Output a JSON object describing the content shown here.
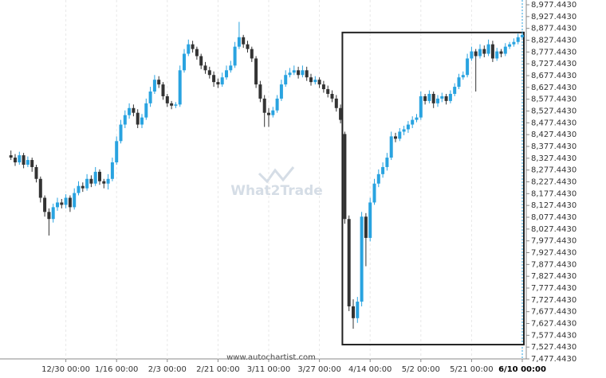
{
  "chart_data": {
    "type": "candlestick",
    "watermark": "What2Trade",
    "source": "www.autochartist.com",
    "up_color": "#29a3e0",
    "down_color": "#333333",
    "ylim": [
      7477.443,
      8977.443
    ],
    "yticks": [
      {
        "value": 7477.443,
        "label": "7,477.4430"
      },
      {
        "value": 7527.443,
        "label": "7,527.4430"
      },
      {
        "value": 7577.443,
        "label": "7,577.4430"
      },
      {
        "value": 7627.443,
        "label": "7,627.4430"
      },
      {
        "value": 7677.443,
        "label": "7,677.4430"
      },
      {
        "value": 7727.443,
        "label": "7,727.4430"
      },
      {
        "value": 7777.443,
        "label": "7,777.4430"
      },
      {
        "value": 7827.443,
        "label": "7,827.4430"
      },
      {
        "value": 7877.443,
        "label": "7,877.4430"
      },
      {
        "value": 7927.443,
        "label": "7,927.4430"
      },
      {
        "value": 7977.443,
        "label": "7,977.4430"
      },
      {
        "value": 8027.443,
        "label": "8,027.4430"
      },
      {
        "value": 8077.443,
        "label": "8,077.4430"
      },
      {
        "value": 8127.443,
        "label": "8,127.4430"
      },
      {
        "value": 8177.443,
        "label": "8,177.4430"
      },
      {
        "value": 8227.443,
        "label": "8,227.4430"
      },
      {
        "value": 8277.443,
        "label": "8,277.4430"
      },
      {
        "value": 8327.443,
        "label": "8,327.4430"
      },
      {
        "value": 8377.443,
        "label": "8,377.4430"
      },
      {
        "value": 8427.443,
        "label": "8,427.4430"
      },
      {
        "value": 8477.443,
        "label": "8,477.4430"
      },
      {
        "value": 8527.443,
        "label": "8,527.4430"
      },
      {
        "value": 8577.443,
        "label": "8,577.4430"
      },
      {
        "value": 8627.443,
        "label": "8,627.4430"
      },
      {
        "value": 8677.443,
        "label": "8,677.4430"
      },
      {
        "value": 8727.443,
        "label": "8,727.4430"
      },
      {
        "value": 8777.443,
        "label": "8,777.4430"
      },
      {
        "value": 8827.443,
        "label": "8,827.4430"
      },
      {
        "value": 8877.443,
        "label": "8,877.4430"
      },
      {
        "value": 8927.443,
        "label": "8,927.4430"
      },
      {
        "value": 8977.443,
        "label": "8,977.4430"
      }
    ],
    "categories": [
      null,
      null,
      null,
      null,
      null,
      null,
      null,
      null,
      null,
      null,
      null,
      null,
      null,
      "12/30 00:00",
      null,
      null,
      null,
      null,
      null,
      null,
      null,
      null,
      null,
      null,
      null,
      "1/16 00:00",
      null,
      null,
      null,
      null,
      null,
      null,
      null,
      null,
      null,
      null,
      null,
      "2/3 00:00",
      null,
      null,
      null,
      null,
      null,
      null,
      null,
      null,
      null,
      null,
      null,
      "2/21 00:00",
      null,
      null,
      null,
      null,
      null,
      null,
      null,
      null,
      null,
      null,
      null,
      "3/11 00:00",
      null,
      null,
      null,
      null,
      null,
      null,
      null,
      null,
      null,
      null,
      null,
      "3/27 00:00",
      null,
      null,
      null,
      null,
      null,
      null,
      null,
      null,
      null,
      null,
      null,
      "4/14 00:00",
      null,
      null,
      null,
      null,
      null,
      null,
      null,
      null,
      null,
      null,
      null,
      "5/2 00:00",
      null,
      null,
      null,
      null,
      null,
      null,
      null,
      null,
      null,
      null,
      null,
      "5/21 00:00",
      null,
      null,
      null,
      null,
      null,
      null,
      null,
      null,
      null,
      null,
      null,
      "6/10 00:00"
    ],
    "ohlc": [
      [
        8340,
        8360,
        8320,
        8330
      ],
      [
        8330,
        8345,
        8295,
        8310
      ],
      [
        8310,
        8355,
        8300,
        8340
      ],
      [
        8340,
        8350,
        8285,
        8300
      ],
      [
        8300,
        8335,
        8290,
        8320
      ],
      [
        8320,
        8330,
        8270,
        8290
      ],
      [
        8290,
        8300,
        8225,
        8240
      ],
      [
        8240,
        8250,
        8140,
        8160
      ],
      [
        8160,
        8170,
        8080,
        8100
      ],
      [
        8100,
        8115,
        8000,
        8070
      ],
      [
        8070,
        8135,
        8055,
        8120
      ],
      [
        8120,
        8160,
        8105,
        8140
      ],
      [
        8140,
        8155,
        8115,
        8130
      ],
      [
        8130,
        8175,
        8115,
        8160
      ],
      [
        8160,
        8170,
        8100,
        8120
      ],
      [
        8120,
        8200,
        8110,
        8180
      ],
      [
        8180,
        8230,
        8170,
        8210
      ],
      [
        8210,
        8225,
        8185,
        8200
      ],
      [
        8200,
        8260,
        8190,
        8240
      ],
      [
        8240,
        8255,
        8205,
        8220
      ],
      [
        8220,
        8290,
        8210,
        8270
      ],
      [
        8270,
        8280,
        8215,
        8230
      ],
      [
        8230,
        8240,
        8200,
        8220
      ],
      [
        8220,
        8260,
        8195,
        8240
      ],
      [
        8240,
        8330,
        8230,
        8310
      ],
      [
        8310,
        8420,
        8300,
        8400
      ],
      [
        8400,
        8490,
        8390,
        8470
      ],
      [
        8470,
        8530,
        8455,
        8510
      ],
      [
        8510,
        8560,
        8495,
        8540
      ],
      [
        8540,
        8555,
        8505,
        8520
      ],
      [
        8520,
        8535,
        8455,
        8470
      ],
      [
        8470,
        8515,
        8455,
        8500
      ],
      [
        8500,
        8580,
        8490,
        8560
      ],
      [
        8560,
        8630,
        8545,
        8610
      ],
      [
        8610,
        8680,
        8600,
        8660
      ],
      [
        8660,
        8675,
        8625,
        8640
      ],
      [
        8640,
        8650,
        8575,
        8590
      ],
      [
        8590,
        8600,
        8545,
        8560
      ],
      [
        8560,
        8570,
        8535,
        8550
      ],
      [
        8550,
        8565,
        8540,
        8555
      ],
      [
        8555,
        8720,
        8545,
        8700
      ],
      [
        8700,
        8790,
        8690,
        8770
      ],
      [
        8770,
        8830,
        8760,
        8810
      ],
      [
        8810,
        8825,
        8775,
        8790
      ],
      [
        8790,
        8800,
        8745,
        8760
      ],
      [
        8760,
        8770,
        8705,
        8720
      ],
      [
        8720,
        8735,
        8685,
        8700
      ],
      [
        8700,
        8715,
        8665,
        8680
      ],
      [
        8680,
        8695,
        8630,
        8650
      ],
      [
        8650,
        8665,
        8625,
        8640
      ],
      [
        8640,
        8690,
        8630,
        8670
      ],
      [
        8670,
        8720,
        8660,
        8700
      ],
      [
        8700,
        8740,
        8690,
        8720
      ],
      [
        8720,
        8820,
        8710,
        8800
      ],
      [
        8800,
        8905,
        8790,
        8840
      ],
      [
        8840,
        8850,
        8795,
        8810
      ],
      [
        8810,
        8825,
        8775,
        8790
      ],
      [
        8790,
        8800,
        8735,
        8750
      ],
      [
        8750,
        8760,
        8625,
        8640
      ],
      [
        8640,
        8655,
        8565,
        8580
      ],
      [
        8580,
        8595,
        8460,
        8520
      ],
      [
        8520,
        8540,
        8460,
        8510
      ],
      [
        8510,
        8545,
        8500,
        8530
      ],
      [
        8530,
        8595,
        8520,
        8580
      ],
      [
        8580,
        8660,
        8570,
        8640
      ],
      [
        8640,
        8700,
        8630,
        8680
      ],
      [
        8680,
        8710,
        8670,
        8690
      ],
      [
        8690,
        8720,
        8680,
        8700
      ],
      [
        8700,
        8715,
        8665,
        8680
      ],
      [
        8680,
        8720,
        8670,
        8700
      ],
      [
        8700,
        8715,
        8655,
        8670
      ],
      [
        8670,
        8685,
        8635,
        8650
      ],
      [
        8650,
        8675,
        8640,
        8660
      ],
      [
        8660,
        8670,
        8625,
        8640
      ],
      [
        8640,
        8655,
        8605,
        8620
      ],
      [
        8620,
        8635,
        8585,
        8600
      ],
      [
        8600,
        8615,
        8565,
        8580
      ],
      [
        8580,
        8595,
        8525,
        8540
      ],
      [
        8540,
        8555,
        8475,
        8490
      ],
      [
        8430,
        8440,
        8050,
        8070
      ],
      [
        8070,
        8085,
        7680,
        7700
      ],
      [
        7700,
        7730,
        7605,
        7650
      ],
      [
        7650,
        7740,
        7630,
        7720
      ],
      [
        7720,
        8100,
        7700,
        8080
      ],
      [
        8080,
        8095,
        7870,
        7990
      ],
      [
        7990,
        8160,
        7975,
        8140
      ],
      [
        8140,
        8240,
        8130,
        8220
      ],
      [
        8220,
        8280,
        8205,
        8260
      ],
      [
        8260,
        8310,
        8245,
        8290
      ],
      [
        8290,
        8350,
        8275,
        8330
      ],
      [
        8330,
        8440,
        8320,
        8420
      ],
      [
        8420,
        8435,
        8395,
        8410
      ],
      [
        8410,
        8455,
        8400,
        8440
      ],
      [
        8440,
        8465,
        8425,
        8450
      ],
      [
        8450,
        8485,
        8435,
        8470
      ],
      [
        8470,
        8505,
        8455,
        8490
      ],
      [
        8490,
        8515,
        8480,
        8500
      ],
      [
        8500,
        8610,
        8490,
        8590
      ],
      [
        8590,
        8600,
        8555,
        8570
      ],
      [
        8570,
        8615,
        8560,
        8600
      ],
      [
        8600,
        8610,
        8540,
        8560
      ],
      [
        8560,
        8595,
        8545,
        8580
      ],
      [
        8580,
        8605,
        8565,
        8590
      ],
      [
        8590,
        8600,
        8555,
        8570
      ],
      [
        8570,
        8615,
        8560,
        8600
      ],
      [
        8600,
        8645,
        8590,
        8630
      ],
      [
        8630,
        8685,
        8620,
        8670
      ],
      [
        8670,
        8695,
        8660,
        8680
      ],
      [
        8680,
        8770,
        8670,
        8750
      ],
      [
        8750,
        8800,
        8740,
        8780
      ],
      [
        8780,
        8790,
        8610,
        8760
      ],
      [
        8760,
        8810,
        8750,
        8790
      ],
      [
        8790,
        8805,
        8755,
        8770
      ],
      [
        8770,
        8830,
        8760,
        8810
      ],
      [
        8810,
        8825,
        8735,
        8750
      ],
      [
        8750,
        8795,
        8740,
        8780
      ],
      [
        8780,
        8790,
        8755,
        8770
      ],
      [
        8770,
        8815,
        8760,
        8800
      ],
      [
        8800,
        8820,
        8790,
        8810
      ],
      [
        8810,
        8835,
        8800,
        8820
      ],
      [
        8820,
        8855,
        8810,
        8840
      ],
      [
        8840,
        8865,
        8830,
        8850
      ]
    ],
    "highlight": {
      "start": 79,
      "end": 121,
      "low": 7538,
      "high": 8860
    }
  }
}
